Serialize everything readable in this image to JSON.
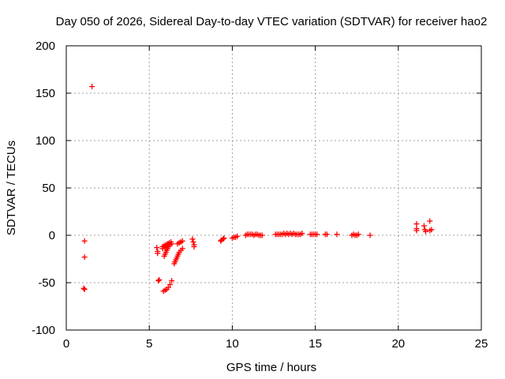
{
  "chart_data": {
    "type": "scatter",
    "title": "Day 050 of 2026, Sidereal Day-to-day VTEC variation (SDTVAR) for receiver hao2",
    "xlabel": "GPS time / hours",
    "ylabel": "SDTVAR / TECUs",
    "xlim": [
      0,
      25
    ],
    "ylim": [
      -100,
      200
    ],
    "xticks": [
      "0",
      "5",
      "10",
      "15",
      "20",
      "25"
    ],
    "yticks": [
      "-100",
      "-50",
      "0",
      "50",
      "100",
      "150",
      "200"
    ],
    "grid": true,
    "marker": "+",
    "color": "#ff0000",
    "series": [
      {
        "name": "SDTVAR",
        "points": [
          [
            1.1,
            -6
          ],
          [
            1.1,
            -23
          ],
          [
            1.05,
            -56
          ],
          [
            1.1,
            -57
          ],
          [
            1.55,
            157
          ],
          [
            5.45,
            -13
          ],
          [
            5.5,
            -17
          ],
          [
            5.5,
            -19
          ],
          [
            5.6,
            -47
          ],
          [
            5.55,
            -48
          ],
          [
            5.8,
            -12
          ],
          [
            5.9,
            -11
          ],
          [
            6.0,
            -10
          ],
          [
            6.1,
            -9
          ],
          [
            6.2,
            -8
          ],
          [
            6.3,
            -7
          ],
          [
            5.8,
            -14
          ],
          [
            5.95,
            -13
          ],
          [
            6.1,
            -12
          ],
          [
            6.25,
            -10
          ],
          [
            6.35,
            -9
          ],
          [
            5.9,
            -22
          ],
          [
            5.95,
            -20
          ],
          [
            6.0,
            -18
          ],
          [
            6.05,
            -16
          ],
          [
            6.1,
            -14
          ],
          [
            6.15,
            -12
          ],
          [
            6.2,
            -10
          ],
          [
            5.85,
            -59
          ],
          [
            5.95,
            -58
          ],
          [
            6.05,
            -57
          ],
          [
            6.15,
            -55
          ],
          [
            6.25,
            -52
          ],
          [
            6.35,
            -48
          ],
          [
            6.5,
            -30
          ],
          [
            6.55,
            -28
          ],
          [
            6.6,
            -26
          ],
          [
            6.65,
            -24
          ],
          [
            6.7,
            -22
          ],
          [
            6.75,
            -20
          ],
          [
            6.8,
            -18
          ],
          [
            6.9,
            -16
          ],
          [
            7.0,
            -14
          ],
          [
            6.7,
            -9
          ],
          [
            6.8,
            -8
          ],
          [
            6.9,
            -7
          ],
          [
            7.0,
            -6
          ],
          [
            7.6,
            -4
          ],
          [
            7.65,
            -7
          ],
          [
            7.7,
            -10
          ],
          [
            7.7,
            -12
          ],
          [
            9.3,
            -6
          ],
          [
            9.35,
            -5
          ],
          [
            9.45,
            -4
          ],
          [
            9.5,
            -3
          ],
          [
            10.0,
            -3
          ],
          [
            10.1,
            -2
          ],
          [
            10.2,
            -2
          ],
          [
            10.3,
            -1
          ],
          [
            10.8,
            0
          ],
          [
            10.9,
            1
          ],
          [
            11.0,
            1
          ],
          [
            11.1,
            1
          ],
          [
            11.2,
            1
          ],
          [
            11.3,
            0
          ],
          [
            11.4,
            1
          ],
          [
            11.5,
            1
          ],
          [
            11.6,
            0
          ],
          [
            11.7,
            0
          ],
          [
            11.8,
            0
          ],
          [
            12.6,
            1
          ],
          [
            12.7,
            1
          ],
          [
            12.8,
            1
          ],
          [
            12.9,
            1
          ],
          [
            13.0,
            1
          ],
          [
            13.1,
            2
          ],
          [
            13.2,
            1
          ],
          [
            13.3,
            2
          ],
          [
            13.4,
            1
          ],
          [
            13.5,
            2
          ],
          [
            13.6,
            1
          ],
          [
            13.7,
            2
          ],
          [
            13.8,
            1
          ],
          [
            13.9,
            1
          ],
          [
            14.0,
            1
          ],
          [
            14.1,
            1
          ],
          [
            14.2,
            2
          ],
          [
            14.7,
            1
          ],
          [
            14.8,
            1
          ],
          [
            14.9,
            1
          ],
          [
            15.0,
            1
          ],
          [
            15.1,
            1
          ],
          [
            15.6,
            1
          ],
          [
            15.7,
            1
          ],
          [
            16.3,
            1
          ],
          [
            17.2,
            0
          ],
          [
            17.3,
            1
          ],
          [
            17.4,
            0
          ],
          [
            17.5,
            0
          ],
          [
            17.6,
            1
          ],
          [
            18.3,
            0
          ],
          [
            21.1,
            12
          ],
          [
            21.1,
            7
          ],
          [
            21.1,
            5
          ],
          [
            21.55,
            10
          ],
          [
            21.6,
            6
          ],
          [
            21.65,
            4
          ],
          [
            21.9,
            15
          ],
          [
            22.0,
            6
          ],
          [
            21.9,
            5
          ]
        ]
      }
    ]
  }
}
